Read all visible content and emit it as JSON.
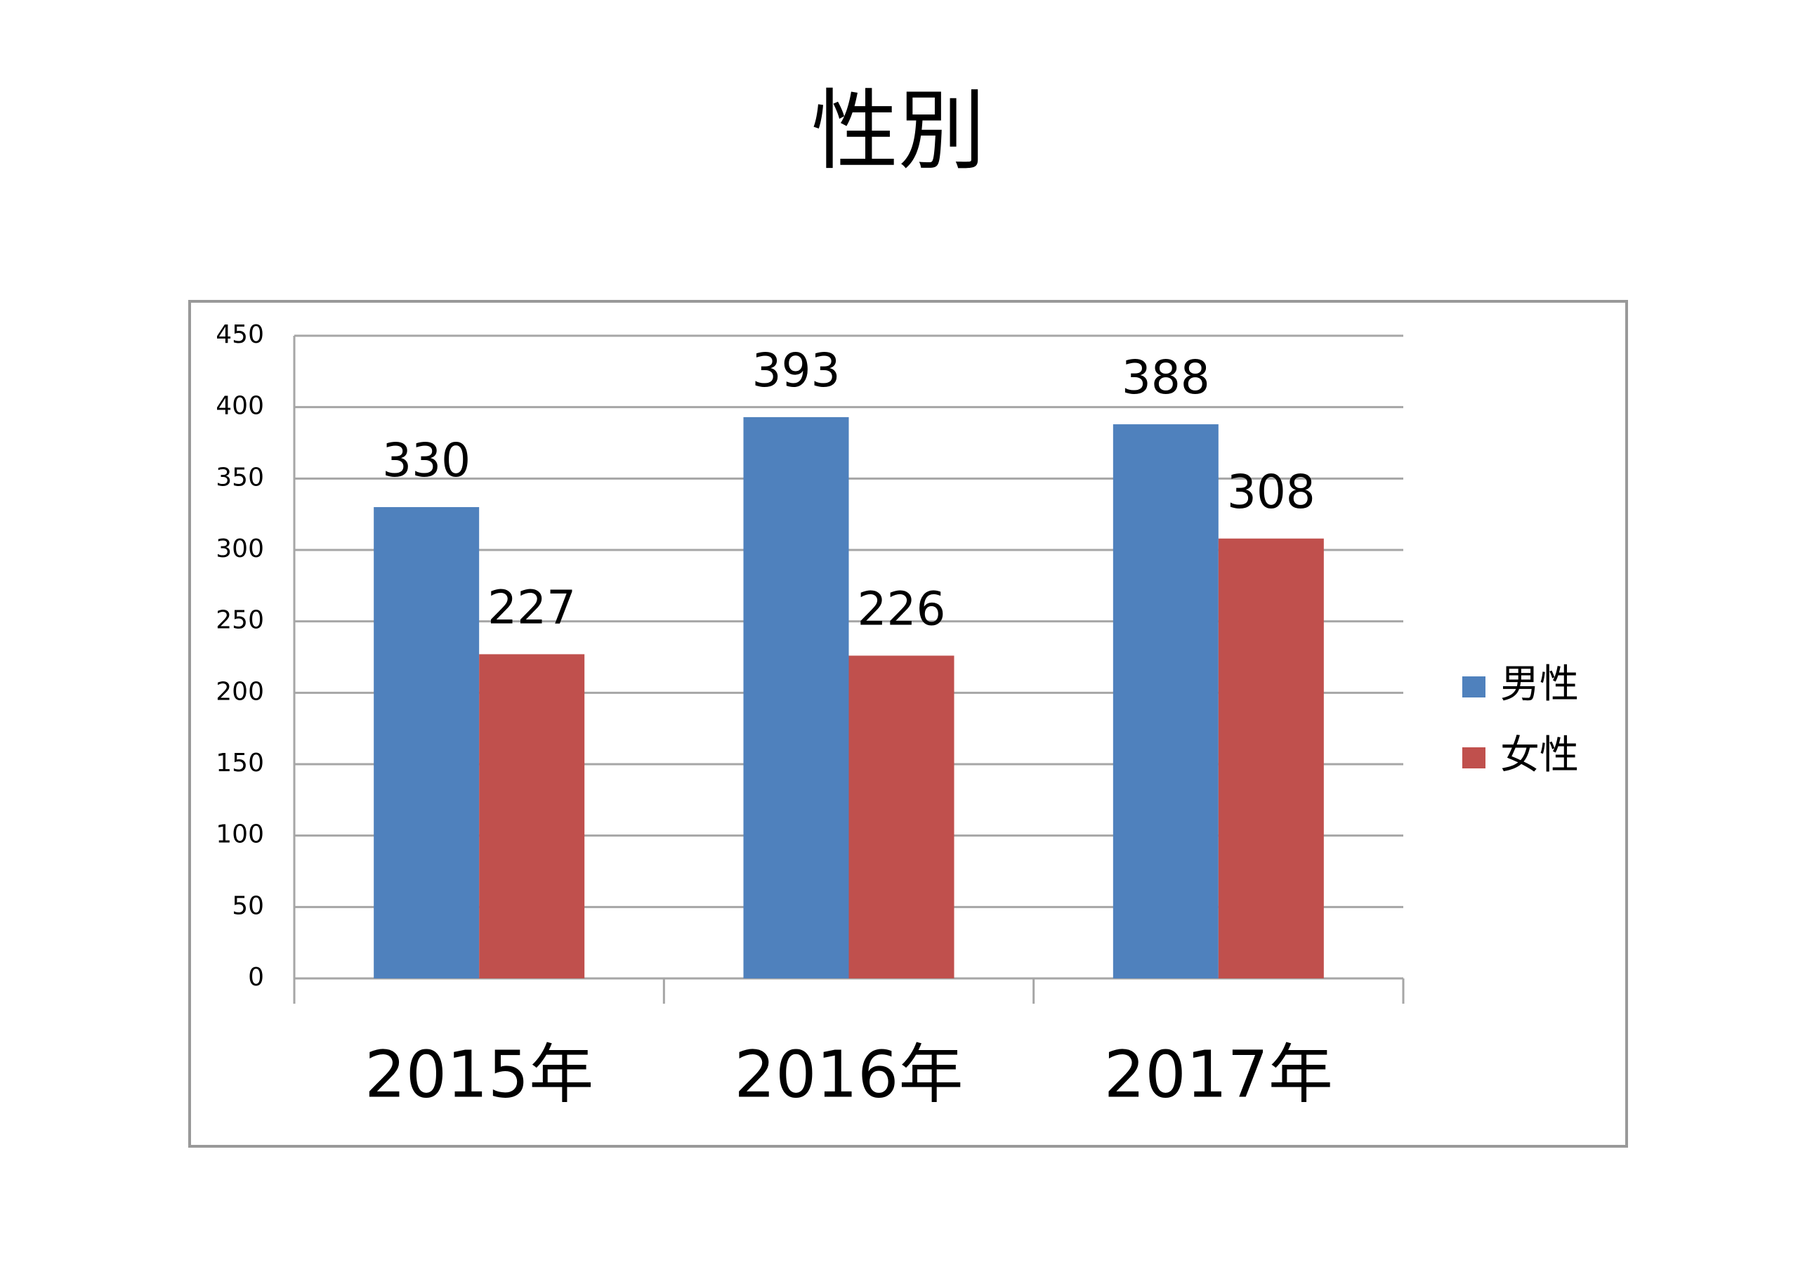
{
  "chart_data": {
    "type": "bar",
    "title": "性別",
    "categories": [
      "2015年",
      "2016年",
      "2017年"
    ],
    "series": [
      {
        "name": "男性",
        "color": "#4f81bd",
        "values": [
          330,
          393,
          388
        ]
      },
      {
        "name": "女性",
        "color": "#c0504d",
        "values": [
          227,
          226,
          308
        ]
      }
    ],
    "ylim": [
      0,
      450
    ],
    "yticks": [
      0,
      50,
      100,
      150,
      200,
      250,
      300,
      350,
      400,
      450
    ],
    "grid": true,
    "legend": "right",
    "data_labels": true
  }
}
